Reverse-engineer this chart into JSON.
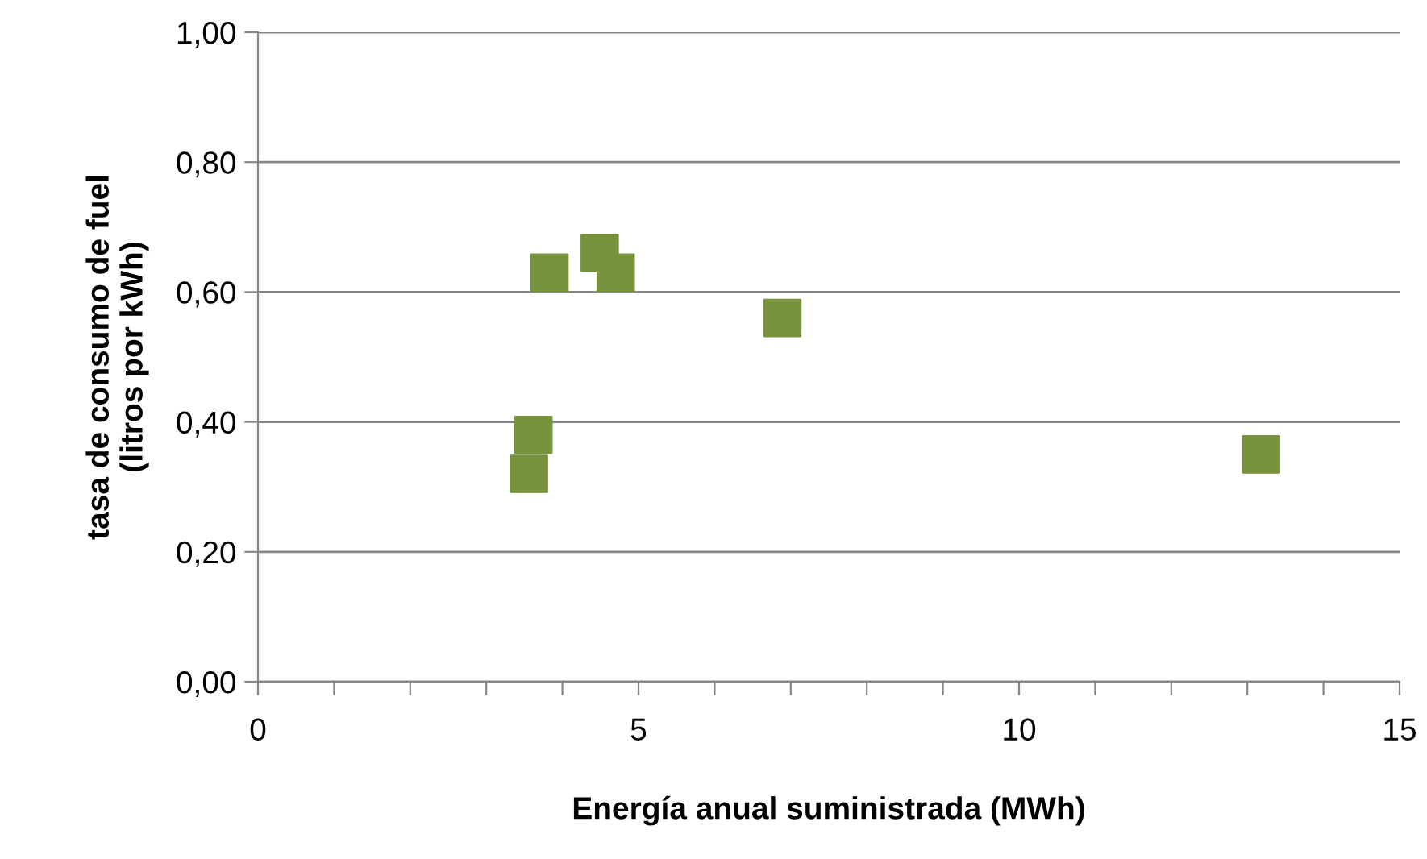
{
  "chart_data": {
    "type": "scatter",
    "xlabel": "Energía anual suministrada (MWh)",
    "ylabel": "tasa de consumo de fuel\n(litros por kWh)",
    "x": [
      3.56,
      3.62,
      3.83,
      4.49,
      4.7,
      6.89,
      13.18
    ],
    "series": [
      {
        "color": "#77933c",
        "values": [
          0.32,
          0.38,
          0.63,
          0.66,
          0.63,
          0.56,
          0.35
        ]
      }
    ],
    "marker": "square",
    "xlim": [
      0,
      15
    ],
    "xticks": [
      0,
      {
        "value": 1,
        "label": null
      },
      {
        "value": 2,
        "label": null
      },
      {
        "value": 3,
        "label": null
      },
      {
        "value": 4,
        "label": null
      },
      5,
      {
        "value": 6,
        "label": null
      },
      {
        "value": 7,
        "label": null
      },
      {
        "value": 8,
        "label": null
      },
      {
        "value": 9,
        "label": null
      },
      10,
      {
        "value": 11,
        "label": null
      },
      {
        "value": 12,
        "label": null
      },
      {
        "value": 13,
        "label": null
      },
      {
        "value": 14,
        "label": null
      },
      15
    ],
    "ylim": [
      0,
      1
    ],
    "yticks": [
      {
        "value": 0,
        "label": "0,00"
      },
      {
        "value": 0.2,
        "label": "0,20"
      },
      {
        "value": 0.4,
        "label": "0,40"
      },
      {
        "value": 0.6,
        "label": "0,60"
      },
      {
        "value": 0.8,
        "label": "0,80"
      },
      {
        "value": 1,
        "label": "1,00"
      }
    ],
    "grid": "y"
  }
}
